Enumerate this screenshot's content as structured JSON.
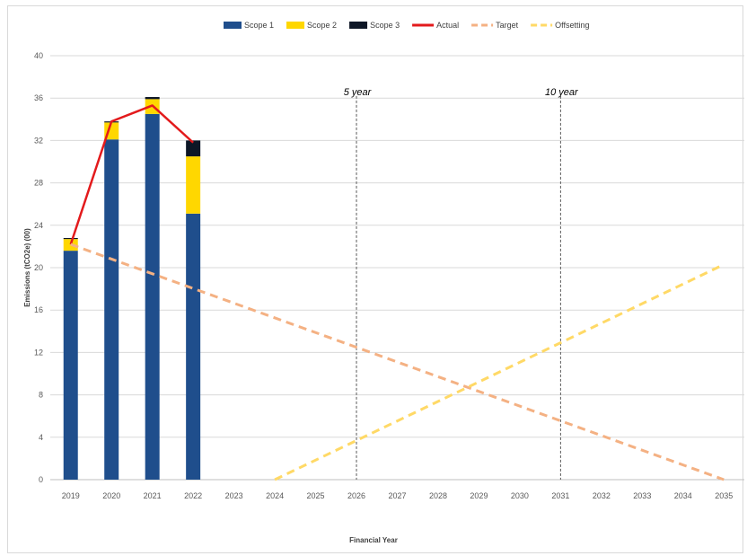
{
  "chart_data": {
    "type": "bar",
    "title": "",
    "xlabel": "Financial Year",
    "ylabel": "Emissions (tCO2e) (00)",
    "ylim": [
      0,
      40
    ],
    "yticks": [
      0,
      4,
      8,
      12,
      16,
      20,
      24,
      28,
      32,
      36,
      40
    ],
    "grid": true,
    "legend_position": "top",
    "categories": [
      "2019",
      "2020",
      "2021",
      "2022",
      "2023",
      "2024",
      "2025",
      "2026",
      "2027",
      "2028",
      "2029",
      "2030",
      "2031",
      "2032",
      "2033",
      "2034",
      "2035"
    ],
    "bar_series": [
      {
        "name": "Scope 1",
        "color": "#1f4e8c",
        "values": [
          21.6,
          32.1,
          34.5,
          25.1,
          null,
          null,
          null,
          null,
          null,
          null,
          null,
          null,
          null,
          null,
          null,
          null,
          null
        ]
      },
      {
        "name": "Scope 2",
        "color": "#ffd700",
        "values": [
          1.1,
          1.6,
          1.4,
          5.4,
          null,
          null,
          null,
          null,
          null,
          null,
          null,
          null,
          null,
          null,
          null,
          null,
          null
        ]
      },
      {
        "name": "Scope 3",
        "color": "#0d1626",
        "values": [
          0.1,
          0.1,
          0.2,
          1.5,
          null,
          null,
          null,
          null,
          null,
          null,
          null,
          null,
          null,
          null,
          null,
          null,
          null
        ]
      }
    ],
    "line_series": [
      {
        "name": "Actual",
        "color": "#e31a1c",
        "style": "solid",
        "points": [
          [
            "2019",
            22.2
          ],
          [
            "2020",
            33.8
          ],
          [
            "2021",
            35.3
          ],
          [
            "2022",
            31.8
          ]
        ]
      },
      {
        "name": "Target",
        "color": "#f4b183",
        "style": "dashed",
        "points": [
          [
            "2019",
            22.2
          ],
          [
            "2035",
            0
          ]
        ]
      },
      {
        "name": "Offsetting",
        "color": "#ffd966",
        "style": "dashed",
        "points": [
          [
            "2024",
            0
          ],
          [
            "2035",
            20.3
          ]
        ]
      }
    ],
    "annotations": [
      {
        "text": "5 year",
        "x": "2026"
      },
      {
        "text": "10 year",
        "x": "2031"
      }
    ]
  }
}
